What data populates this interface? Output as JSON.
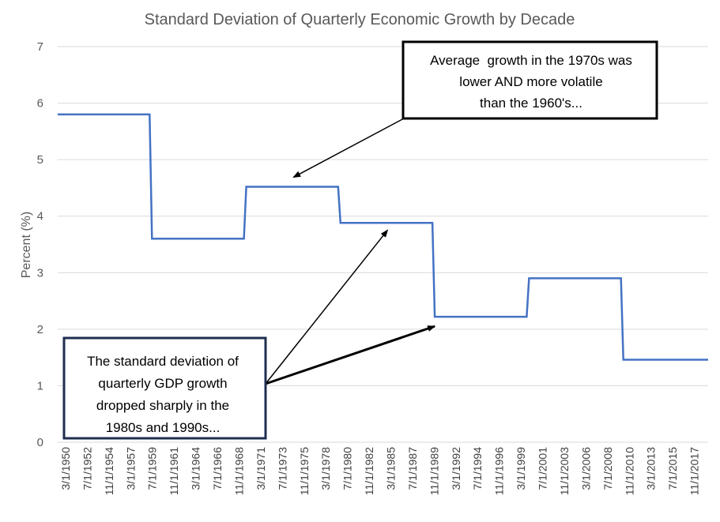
{
  "chart_data": {
    "type": "line",
    "step": true,
    "title": "Standard Deviation of Quarterly Economic Growth by Decade",
    "ylabel": "Percent (%)",
    "ylim": [
      0,
      7
    ],
    "yticks": [
      0,
      1,
      2,
      3,
      4,
      5,
      6,
      7
    ],
    "grid": true,
    "legend": "none",
    "series_color": "#4472c4",
    "x_start": "3/1/1950",
    "x_end": "3/1/2019",
    "x_tick_labels": [
      "3/1/1950",
      "7/1/1952",
      "11/1/1954",
      "3/1/1957",
      "7/1/1959",
      "11/1/1961",
      "3/1/1964",
      "7/1/1966",
      "11/1/1968",
      "3/1/1971",
      "7/1/1973",
      "11/1/1975",
      "3/1/1978",
      "7/1/1980",
      "11/1/1982",
      "3/1/1985",
      "7/1/1987",
      "11/1/1989",
      "3/1/1992",
      "7/1/1994",
      "11/1/1996",
      "3/1/1999",
      "7/1/2001",
      "11/1/2003",
      "3/1/2006",
      "7/1/2008",
      "11/1/2010",
      "3/1/2013",
      "7/1/2015",
      "11/1/2017"
    ],
    "series": [
      {
        "values_by_period": [
          {
            "from": "3/1/1950",
            "to": "12/1/1959",
            "value": 5.8
          },
          {
            "from": "3/1/1960",
            "to": "12/1/1969",
            "value": 3.6
          },
          {
            "from": "3/1/1970",
            "to": "12/1/1979",
            "value": 4.52
          },
          {
            "from": "3/1/1980",
            "to": "12/1/1989",
            "value": 3.88
          },
          {
            "from": "3/1/1990",
            "to": "12/1/1999",
            "value": 2.22
          },
          {
            "from": "3/1/2000",
            "to": "12/1/2009",
            "value": 2.9
          },
          {
            "from": "3/1/2010",
            "to": "3/1/2019",
            "value": 1.46
          }
        ]
      }
    ],
    "annotations": [
      {
        "lines": [
          "Average  growth in the 1970s was",
          "lower AND more volatile",
          "than the 1960's..."
        ],
        "border_color": "#000000",
        "arrow_targets": [
          {
            "date": "3/1/1975",
            "value": 4.52
          }
        ]
      },
      {
        "lines": [
          "The standard deviation of",
          "quarterly GDP growth",
          "dropped sharply in the",
          "1980s and 1990s..."
        ],
        "border_color": "#1f2d4f",
        "arrow_targets": [
          {
            "date": "3/1/1985",
            "value": 3.88
          },
          {
            "date": "3/1/1990",
            "value": 2.22
          }
        ]
      }
    ]
  }
}
